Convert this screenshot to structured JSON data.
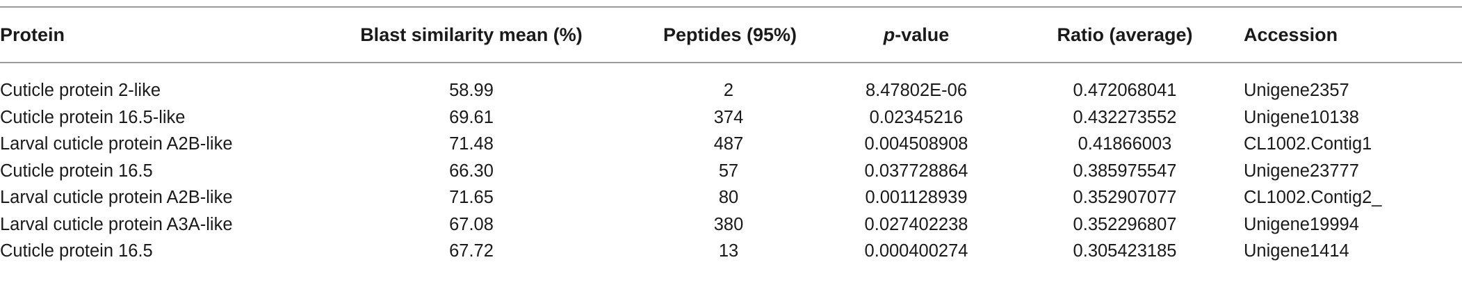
{
  "table": {
    "headers": {
      "protein": "Protein",
      "blast": "Blast similarity mean (%)",
      "peptides": "Peptides (95%)",
      "pvalue_italic": "p",
      "pvalue_rest": "-value",
      "ratio": "Ratio (average)",
      "accession": "Accession"
    },
    "rows": [
      {
        "protein": "Cuticle protein 2-like",
        "blast": "58.99",
        "peptides": "2",
        "pvalue": "8.47802E-06",
        "ratio": "0.472068041",
        "accession": "Unigene2357"
      },
      {
        "protein": "Cuticle protein 16.5-like",
        "blast": "69.61",
        "peptides": "374",
        "pvalue": "0.02345216",
        "ratio": "0.432273552",
        "accession": "Unigene10138"
      },
      {
        "protein": "Larval cuticle protein A2B-like",
        "blast": "71.48",
        "peptides": "487",
        "pvalue": "0.004508908",
        "ratio": "0.41866003",
        "accession": "CL1002.Contig1"
      },
      {
        "protein": "Cuticle protein 16.5",
        "blast": "66.30",
        "peptides": "57",
        "pvalue": "0.037728864",
        "ratio": "0.385975547",
        "accession": "Unigene23777"
      },
      {
        "protein": "Larval cuticle protein A2B-like",
        "blast": "71.65",
        "peptides": "80",
        "pvalue": "0.001128939",
        "ratio": "0.352907077",
        "accession": "CL1002.Contig2_"
      },
      {
        "protein": "Larval cuticle protein A3A-like",
        "blast": "67.08",
        "peptides": "380",
        "pvalue": "0.027402238",
        "ratio": "0.352296807",
        "accession": "Unigene19994"
      },
      {
        "protein": "Cuticle protein 16.5",
        "blast": "67.72",
        "peptides": "13",
        "pvalue": "0.000400274",
        "ratio": "0.305423185",
        "accession": "Unigene1414"
      }
    ]
  }
}
